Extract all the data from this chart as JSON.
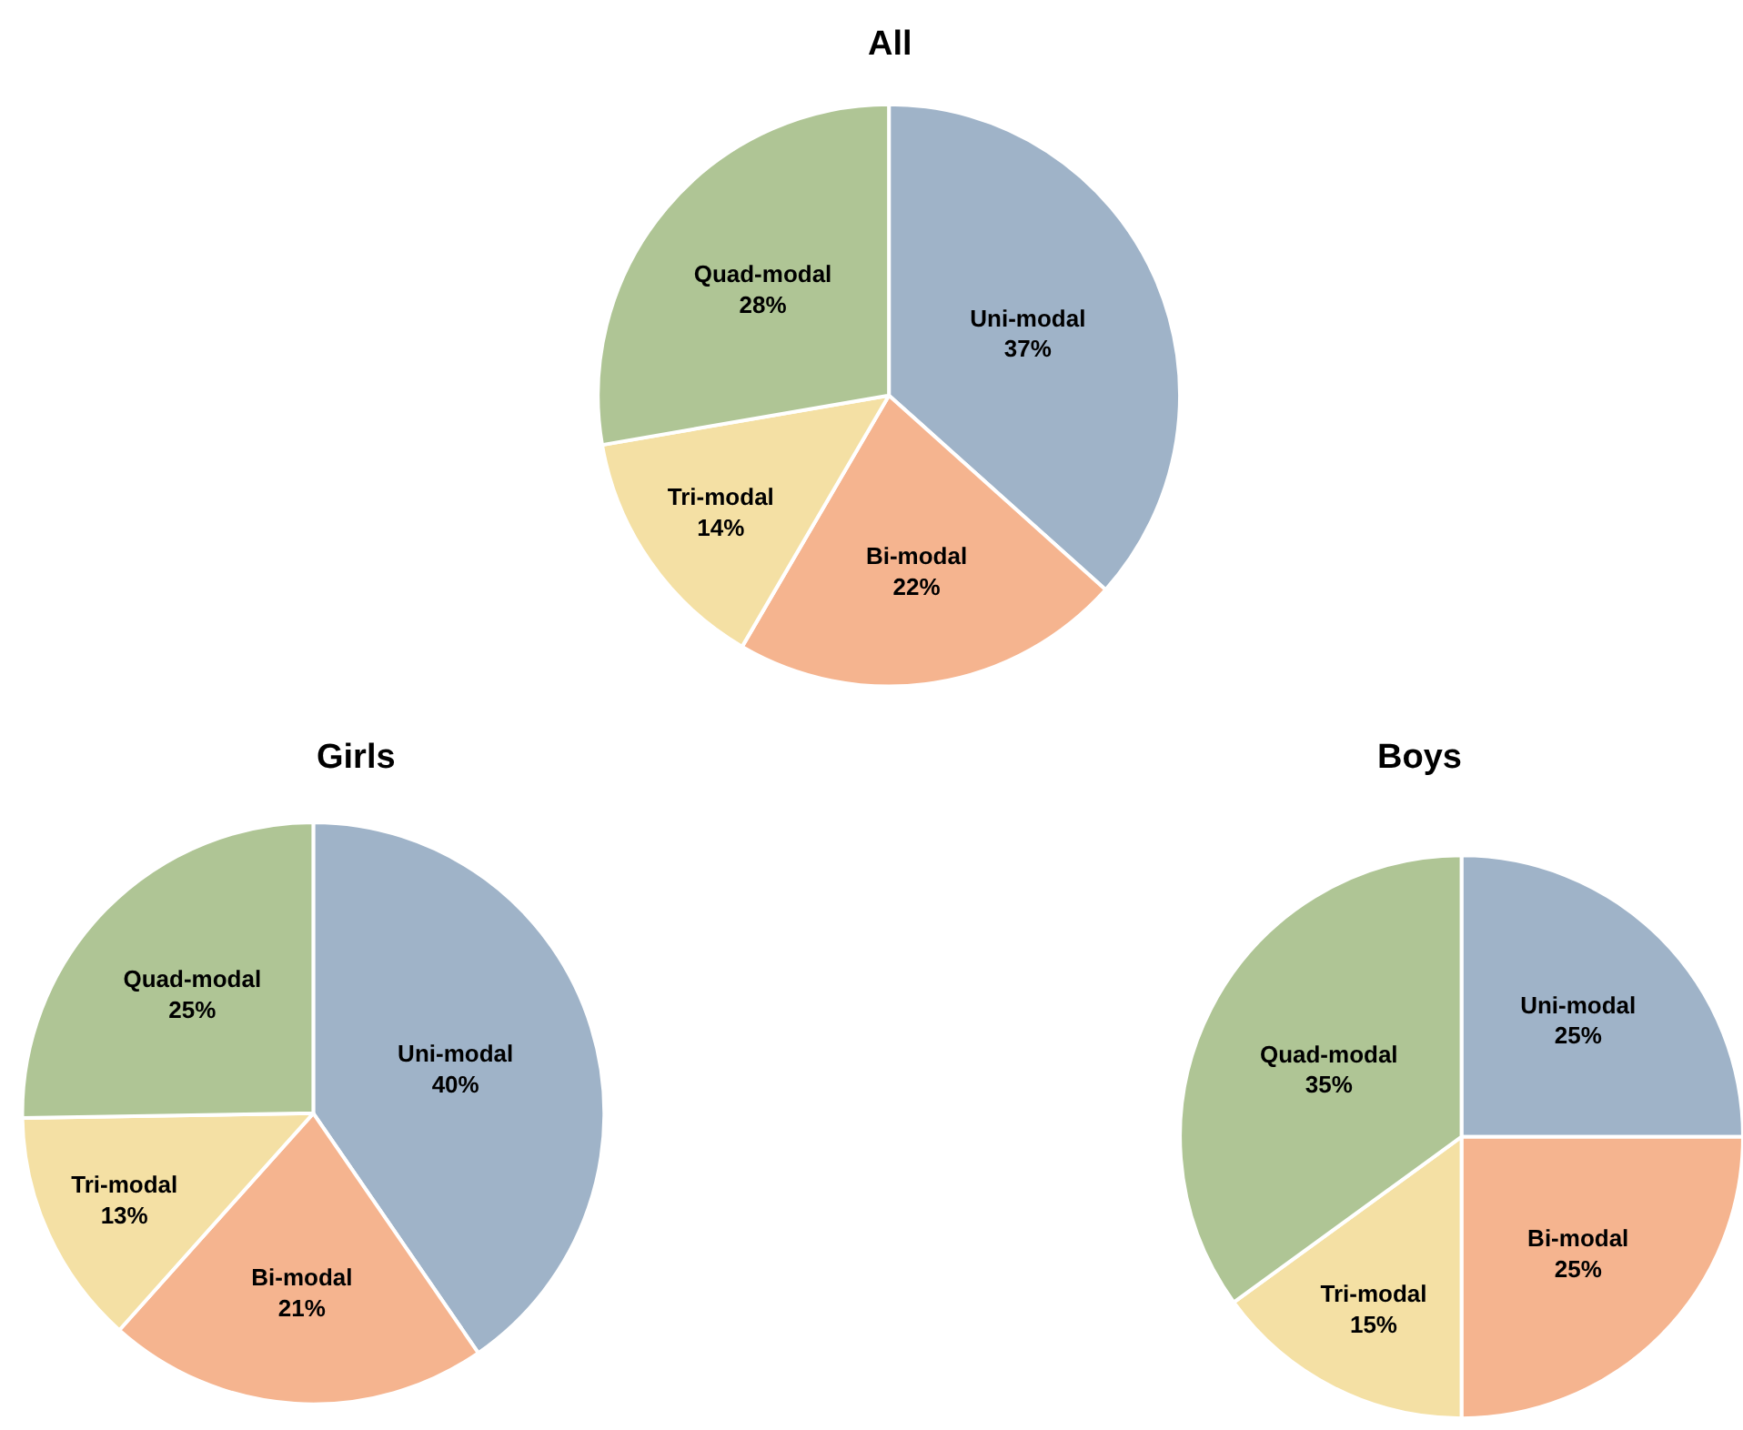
{
  "chart_data": [
    {
      "type": "pie",
      "title": "All",
      "categories": [
        "Uni-modal",
        "Bi-modal",
        "Tri-modal",
        "Quad-modal"
      ],
      "values": [
        37,
        22,
        14,
        28
      ],
      "value_labels": [
        "37%",
        "22%",
        "14%",
        "28%"
      ],
      "colors": [
        "#9fb3c8",
        "#f5b48f",
        "#f4e0a4",
        "#afc595"
      ],
      "legend": false
    },
    {
      "type": "pie",
      "title": "Girls",
      "categories": [
        "Uni-modal",
        "Bi-modal",
        "Tri-modal",
        "Quad-modal"
      ],
      "values": [
        40,
        21,
        13,
        25
      ],
      "value_labels": [
        "40%",
        "21%",
        "13%",
        "25%"
      ],
      "colors": [
        "#9fb3c8",
        "#f5b48f",
        "#f4e0a4",
        "#afc595"
      ],
      "legend": false
    },
    {
      "type": "pie",
      "title": "Boys",
      "categories": [
        "Uni-modal",
        "Bi-modal",
        "Tri-modal",
        "Quad-modal"
      ],
      "values": [
        25,
        25,
        15,
        35
      ],
      "value_labels": [
        "25%",
        "25%",
        "15%",
        "35%"
      ],
      "colors": [
        "#9fb3c8",
        "#f5b48f",
        "#f4e0a4",
        "#afc595"
      ],
      "legend": false
    }
  ]
}
